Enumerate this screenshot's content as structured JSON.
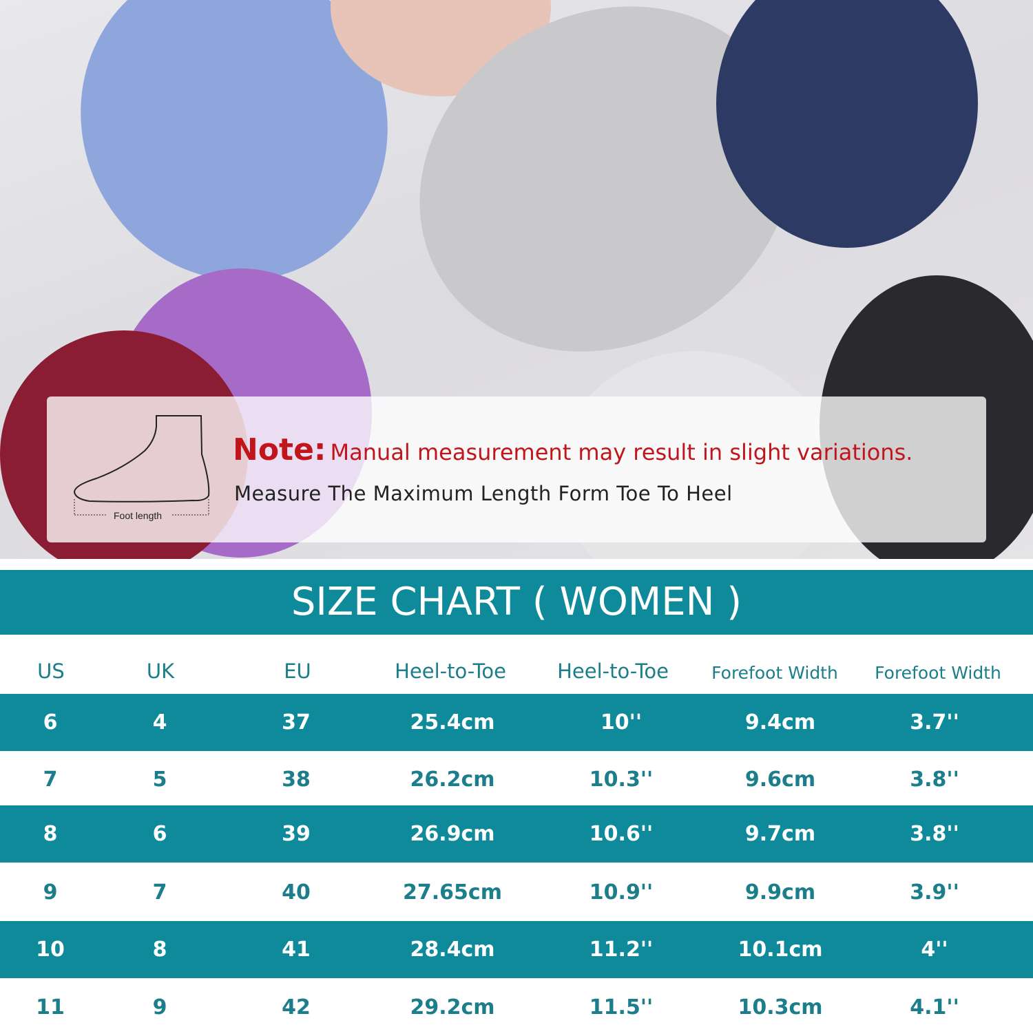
{
  "note": {
    "label": "Note:",
    "text": "Manual measurement may result in slight variations.",
    "instruction": "Measure The Maximum Length Form Toe To Heel",
    "diagram_label": "Foot length"
  },
  "title": "SIZE CHART ( WOMEN )",
  "colors": {
    "accent": "#0e8a9a",
    "note_red": "#c0151b"
  },
  "table": {
    "headers": [
      "US",
      "UK",
      "EU",
      "Heel-to-Toe",
      "Heel-to-Toe",
      "Forefoot Width",
      "Forefoot Width"
    ],
    "rows": [
      [
        "6",
        "4",
        "37",
        "25.4cm",
        "10''",
        "9.4cm",
        "3.7''"
      ],
      [
        "7",
        "5",
        "38",
        "26.2cm",
        "10.3''",
        "9.6cm",
        "3.8''"
      ],
      [
        "8",
        "6",
        "39",
        "26.9cm",
        "10.6''",
        "9.7cm",
        "3.8''"
      ],
      [
        "9",
        "7",
        "40",
        "27.65cm",
        "10.9''",
        "9.9cm",
        "3.9''"
      ],
      [
        "10",
        "8",
        "41",
        "28.4cm",
        "11.2''",
        "10.1cm",
        "4''"
      ],
      [
        "11",
        "9",
        "42",
        "29.2cm",
        "11.5''",
        "10.3cm",
        "4.1''"
      ]
    ]
  }
}
